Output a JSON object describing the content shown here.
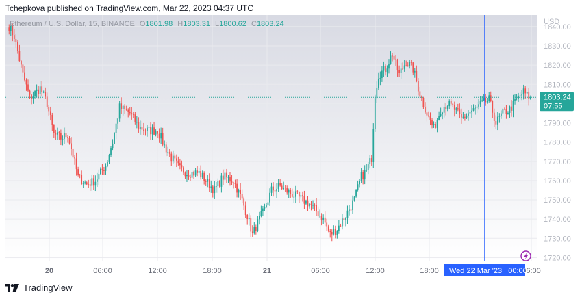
{
  "header": {
    "publisher_line": "Tchepkova published on TradingView.com, Mar 22, 2023 04:37 UTC"
  },
  "legend": {
    "symbol": "Ethereum / U.S. Dollar, 15, BINANCE",
    "o_label": "O",
    "o_value": "1801.98",
    "h_label": "H",
    "h_value": "1803.31",
    "l_label": "L",
    "l_value": "1800.62",
    "c_label": "C",
    "c_value": "1803.24"
  },
  "price_tag": {
    "price": "1803.24",
    "countdown": "07:55"
  },
  "crosshair_label": "Wed 22 Mar '23   00:00",
  "footer": {
    "brand": "TradingView"
  },
  "colors": {
    "up": "#26a69a",
    "down": "#ef5350",
    "crosshair": "#2962ff",
    "price_line": "#26a69a",
    "lightning": "#9c27b0"
  },
  "chart_data": {
    "type": "candlestick",
    "title": "Ethereum / U.S. Dollar, 15, BINANCE",
    "xlabel": "",
    "ylabel": "USD",
    "ylim": [
      1718,
      1846
    ],
    "y_ticks": [
      "1840.00",
      "1830.00",
      "1820.00",
      "1810.00",
      "1800.00",
      "1790.00",
      "1780.00",
      "1770.00",
      "1760.00",
      "1750.00",
      "1740.00",
      "1730.00",
      "1720.00"
    ],
    "x_ticks": [
      "20",
      "06:00",
      "12:00",
      "18:00",
      "21",
      "06:00",
      "12:00",
      "18:00",
      "06:00"
    ],
    "last_price": 1803.24,
    "waypoints": [
      [
        0,
        1840
      ],
      [
        3,
        1835
      ],
      [
        8,
        1815
      ],
      [
        12,
        1803
      ],
      [
        18,
        1808
      ],
      [
        22,
        1800
      ],
      [
        26,
        1784
      ],
      [
        30,
        1782
      ],
      [
        34,
        1784
      ],
      [
        40,
        1762
      ],
      [
        45,
        1758
      ],
      [
        50,
        1760
      ],
      [
        56,
        1768
      ],
      [
        60,
        1780
      ],
      [
        64,
        1798
      ],
      [
        70,
        1795
      ],
      [
        75,
        1788
      ],
      [
        80,
        1786
      ],
      [
        86,
        1786
      ],
      [
        90,
        1778
      ],
      [
        94,
        1772
      ],
      [
        99,
        1766
      ],
      [
        104,
        1764
      ],
      [
        110,
        1764
      ],
      [
        114,
        1760
      ],
      [
        119,
        1755
      ],
      [
        124,
        1762
      ],
      [
        130,
        1760
      ],
      [
        134,
        1752
      ],
      [
        138,
        1742
      ],
      [
        141,
        1732
      ],
      [
        144,
        1738
      ],
      [
        148,
        1745
      ],
      [
        152,
        1755
      ],
      [
        157,
        1757
      ],
      [
        162,
        1754
      ],
      [
        166,
        1752
      ],
      [
        170,
        1750
      ],
      [
        174,
        1748
      ],
      [
        178,
        1744
      ],
      [
        182,
        1740
      ],
      [
        186,
        1732
      ],
      [
        190,
        1735
      ],
      [
        195,
        1742
      ],
      [
        200,
        1750
      ],
      [
        204,
        1762
      ],
      [
        207,
        1765
      ],
      [
        210,
        1772
      ],
      [
        212,
        1805
      ],
      [
        214,
        1815
      ],
      [
        218,
        1818
      ],
      [
        222,
        1826
      ],
      [
        226,
        1815
      ],
      [
        230,
        1822
      ],
      [
        234,
        1818
      ],
      [
        238,
        1805
      ],
      [
        242,
        1795
      ],
      [
        246,
        1787
      ],
      [
        250,
        1797
      ],
      [
        254,
        1800
      ],
      [
        258,
        1797
      ],
      [
        262,
        1792
      ],
      [
        266,
        1795
      ],
      [
        270,
        1797
      ],
      [
        274,
        1800
      ],
      [
        278,
        1802
      ],
      [
        282,
        1790
      ],
      [
        286,
        1795
      ],
      [
        290,
        1797
      ],
      [
        294,
        1802
      ],
      [
        298,
        1806
      ],
      [
        300,
        1804
      ],
      [
        302,
        1803
      ]
    ]
  }
}
